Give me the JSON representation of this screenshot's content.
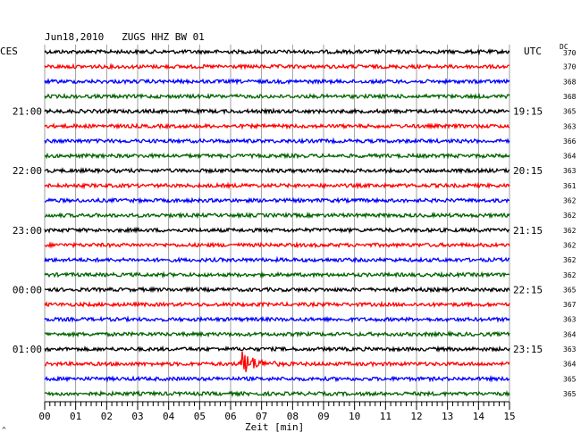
{
  "chart_data": {
    "type": "line",
    "title": "Jun18,2010   ZUGS HHZ BW 01",
    "left_label": "CES",
    "right_label": "UTC",
    "dc_header": "DC",
    "xlabel": "Zeit [min]",
    "xlim": [
      0,
      15
    ],
    "x_ticks": [
      "00",
      "01",
      "02",
      "03",
      "04",
      "05",
      "06",
      "07",
      "08",
      "09",
      "10",
      "11",
      "12",
      "13",
      "14",
      "15"
    ],
    "left_hours": [
      "21:00",
      "22:00",
      "23:00",
      "00:00",
      "01:00"
    ],
    "right_hours": [
      "19:15",
      "20:15",
      "21:15",
      "22:15",
      "23:15"
    ],
    "trace_colors": [
      "#000000",
      "#ff0000",
      "#0000ff",
      "#006400"
    ],
    "dc_values": [
      370,
      370,
      368,
      368,
      365,
      363,
      366,
      364,
      363,
      361,
      362,
      362,
      362,
      362,
      362,
      362,
      365,
      367,
      363,
      364,
      363,
      364,
      365,
      365
    ],
    "event": {
      "trace_index": 21,
      "start_min": 6.3,
      "end_min": 8.0,
      "color": "#ff0000"
    },
    "grid": true,
    "corner_mark": "^"
  }
}
